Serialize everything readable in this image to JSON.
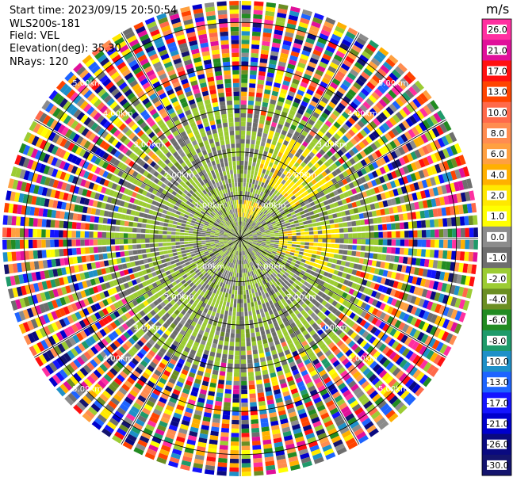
{
  "info": {
    "start_time": "Start time: 2023/09/15 20:50:54",
    "instrument": "WLS200s-181",
    "field": "Field: VEL",
    "elevation": "Elevation(deg): 35.30",
    "nrays": "NRays: 120"
  },
  "chart_data": {
    "type": "heatmap",
    "projection": "polar",
    "n_rays": 120,
    "field": "VEL",
    "unit": "m/s",
    "range_rings_km": [
      1,
      2,
      3,
      4,
      5
    ],
    "ring_labels": [
      "1.00km",
      "2.00km",
      "3.00km",
      "4.00km",
      "5.00km"
    ],
    "max_range_km": 5.5,
    "colorbar": {
      "label": "m/s",
      "ticks": [
        "26.0",
        "21.0",
        "17.0",
        "13.0",
        "10.0",
        "8.0",
        "6.0",
        "4.0",
        "2.0",
        "1.0",
        "0.0",
        "-1.0",
        "-2.0",
        "-4.0",
        "-6.0",
        "-8.0",
        "-10.0",
        "-13.0",
        "-17.0",
        "-21.0",
        "-26.0",
        "-30.0"
      ],
      "colors": [
        "#ff2fa0",
        "#e0109a",
        "#ff1010",
        "#ff4400",
        "#ff6a4a",
        "#ff8c50",
        "#ffa040",
        "#ffb000",
        "#ffe800",
        "#ffff00",
        "#8c8c8c",
        "#6e6e6e",
        "#9ccc33",
        "#6b8e23",
        "#228b22",
        "#1f9a6a",
        "#1e90c8",
        "#1e64ff",
        "#1414ff",
        "#0000cd",
        "#0a0a80",
        "#14146e"
      ]
    }
  }
}
